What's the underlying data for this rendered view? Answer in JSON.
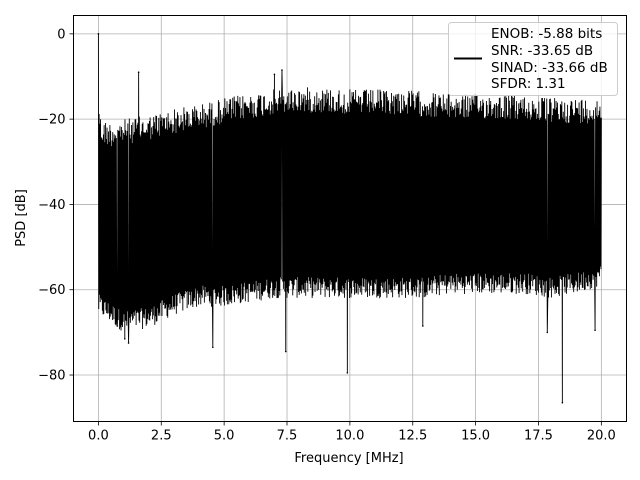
{
  "chart_data": {
    "type": "line",
    "title": "",
    "xlabel": "Frequency [MHz]",
    "ylabel": "PSD [dB]",
    "xlim": [
      -0.99,
      21.0
    ],
    "ylim": [
      -90.9,
      4.3
    ],
    "grid": true,
    "legend_position": "top-right",
    "x_ticks": [
      0.0,
      2.5,
      5.0,
      7.5,
      10.0,
      12.5,
      15.0,
      17.5,
      20.0
    ],
    "x_tick_labels": [
      "0.0",
      "2.5",
      "5.0",
      "7.5",
      "10.0",
      "12.5",
      "15.0",
      "17.5",
      "20.0"
    ],
    "y_ticks": [
      0,
      -20,
      -40,
      -60,
      -80
    ],
    "y_tick_labels": [
      "0",
      "−20",
      "−40",
      "−60",
      "−80"
    ],
    "series": [
      {
        "color": "#000000",
        "legend_lines": [
          "ENOB: -5.88 bits",
          "SNR: -33.65 dB",
          "SINAD: -33.66 dB",
          "SFDR: 1.31"
        ],
        "x_range": [
          0.0,
          20.0
        ],
        "upper_envelope": {
          "x": [
            0.0,
            0.1,
            0.5,
            1.0,
            2.0,
            3.0,
            4.0,
            5.0,
            6.0,
            7.0,
            8.0,
            9.0,
            10.0,
            11.0,
            12.0,
            13.0,
            14.0,
            15.0,
            16.0,
            17.0,
            18.0,
            19.0,
            20.0
          ],
          "y": [
            -13,
            -20,
            -20.5,
            -20,
            -19,
            -17.5,
            -16.5,
            -15,
            -14,
            -13,
            -12.5,
            -12.5,
            -13,
            -13,
            -13,
            -13.5,
            -14,
            -14,
            -14,
            -14.5,
            -15,
            -15,
            -15
          ]
        },
        "lower_envelope": {
          "x": [
            0.0,
            0.5,
            1.0,
            2.0,
            3.0,
            4.0,
            5.0,
            6.0,
            7.0,
            8.0,
            9.0,
            10.0,
            11.0,
            12.0,
            13.0,
            14.0,
            15.0,
            16.0,
            17.0,
            18.0,
            19.0,
            20.0
          ],
          "y": [
            -62,
            -64,
            -66,
            -65,
            -62,
            -60,
            -60,
            -59,
            -58,
            -58,
            -58,
            -58,
            -58,
            -58,
            -58,
            -57,
            -57,
            -57,
            -57,
            -58,
            -57,
            -55
          ]
        },
        "peaks": [
          {
            "x": 0.0,
            "y": 0.0
          },
          {
            "x": 1.6,
            "y": -9.0
          },
          {
            "x": 7.3,
            "y": -8.5
          },
          {
            "x": 7.0,
            "y": -9.5
          }
        ],
        "dips": [
          {
            "x": 0.75,
            "y": -68.5
          },
          {
            "x": 1.05,
            "y": -71.5
          },
          {
            "x": 1.2,
            "y": -72.5
          },
          {
            "x": 4.55,
            "y": -73.5
          },
          {
            "x": 7.45,
            "y": -74.5
          },
          {
            "x": 9.9,
            "y": -79.5
          },
          {
            "x": 12.9,
            "y": -68.5
          },
          {
            "x": 17.85,
            "y": -70.0
          },
          {
            "x": 18.45,
            "y": -86.5
          },
          {
            "x": 19.75,
            "y": -69.5
          }
        ]
      }
    ]
  }
}
